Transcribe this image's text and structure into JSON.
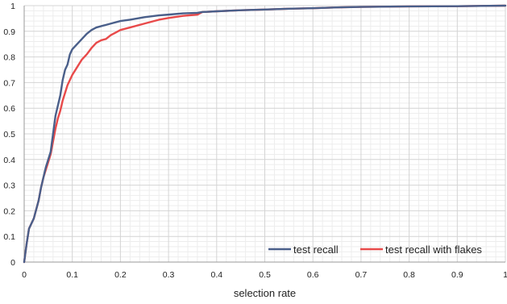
{
  "chart_data": {
    "type": "line",
    "xlabel": "selection rate",
    "ylabel": "",
    "xlim": [
      0,
      1
    ],
    "ylim": [
      0,
      1
    ],
    "x_ticks": [
      "0",
      "0.1",
      "0.2",
      "0.3",
      "0.4",
      "0.5",
      "0.6",
      "0.7",
      "0.8",
      "0.9",
      "1"
    ],
    "y_ticks": [
      "0",
      "0.1",
      "0.2",
      "0.3",
      "0.4",
      "0.5",
      "0.6",
      "0.7",
      "0.8",
      "0.9",
      "1"
    ],
    "grid": true,
    "legend_position": "bottom-right",
    "series": [
      {
        "name": "test recall",
        "color": "#4a5f8a",
        "points": [
          [
            0,
            0
          ],
          [
            0.005,
            0.07
          ],
          [
            0.01,
            0.13
          ],
          [
            0.02,
            0.17
          ],
          [
            0.03,
            0.24
          ],
          [
            0.035,
            0.29
          ],
          [
            0.04,
            0.33
          ],
          [
            0.045,
            0.37
          ],
          [
            0.05,
            0.4
          ],
          [
            0.055,
            0.43
          ],
          [
            0.06,
            0.5
          ],
          [
            0.065,
            0.57
          ],
          [
            0.07,
            0.61
          ],
          [
            0.075,
            0.65
          ],
          [
            0.08,
            0.71
          ],
          [
            0.085,
            0.75
          ],
          [
            0.09,
            0.77
          ],
          [
            0.095,
            0.81
          ],
          [
            0.1,
            0.83
          ],
          [
            0.11,
            0.85
          ],
          [
            0.12,
            0.87
          ],
          [
            0.13,
            0.89
          ],
          [
            0.14,
            0.905
          ],
          [
            0.15,
            0.915
          ],
          [
            0.17,
            0.925
          ],
          [
            0.18,
            0.93
          ],
          [
            0.2,
            0.94
          ],
          [
            0.22,
            0.945
          ],
          [
            0.25,
            0.955
          ],
          [
            0.28,
            0.962
          ],
          [
            0.3,
            0.965
          ],
          [
            0.33,
            0.97
          ],
          [
            0.36,
            0.972
          ],
          [
            0.37,
            0.975
          ],
          [
            0.4,
            0.978
          ],
          [
            0.45,
            0.982
          ],
          [
            0.5,
            0.985
          ],
          [
            0.55,
            0.988
          ],
          [
            0.6,
            0.99
          ],
          [
            0.65,
            0.993
          ],
          [
            0.7,
            0.995
          ],
          [
            0.8,
            0.997
          ],
          [
            0.9,
            0.998
          ],
          [
            0.95,
            0.999
          ],
          [
            1.0,
            1.0
          ]
        ]
      },
      {
        "name": "test recall with flakes",
        "color": "#e84a4a",
        "points": [
          [
            0,
            0
          ],
          [
            0.005,
            0.07
          ],
          [
            0.01,
            0.13
          ],
          [
            0.02,
            0.17
          ],
          [
            0.03,
            0.24
          ],
          [
            0.035,
            0.29
          ],
          [
            0.04,
            0.33
          ],
          [
            0.045,
            0.36
          ],
          [
            0.05,
            0.39
          ],
          [
            0.055,
            0.42
          ],
          [
            0.06,
            0.47
          ],
          [
            0.065,
            0.52
          ],
          [
            0.07,
            0.56
          ],
          [
            0.075,
            0.59
          ],
          [
            0.08,
            0.63
          ],
          [
            0.085,
            0.66
          ],
          [
            0.09,
            0.69
          ],
          [
            0.1,
            0.73
          ],
          [
            0.11,
            0.76
          ],
          [
            0.12,
            0.79
          ],
          [
            0.13,
            0.81
          ],
          [
            0.14,
            0.835
          ],
          [
            0.15,
            0.855
          ],
          [
            0.16,
            0.865
          ],
          [
            0.17,
            0.87
          ],
          [
            0.18,
            0.885
          ],
          [
            0.19,
            0.895
          ],
          [
            0.2,
            0.905
          ],
          [
            0.22,
            0.915
          ],
          [
            0.25,
            0.93
          ],
          [
            0.28,
            0.945
          ],
          [
            0.3,
            0.952
          ],
          [
            0.33,
            0.96
          ],
          [
            0.36,
            0.965
          ],
          [
            0.37,
            0.975
          ],
          [
            0.4,
            0.978
          ],
          [
            0.45,
            0.982
          ],
          [
            0.5,
            0.985
          ],
          [
            0.55,
            0.988
          ],
          [
            0.6,
            0.99
          ],
          [
            0.65,
            0.993
          ],
          [
            0.7,
            0.995
          ],
          [
            0.8,
            0.997
          ],
          [
            0.9,
            0.998
          ],
          [
            0.95,
            0.999
          ],
          [
            1.0,
            1.0
          ]
        ]
      }
    ]
  }
}
